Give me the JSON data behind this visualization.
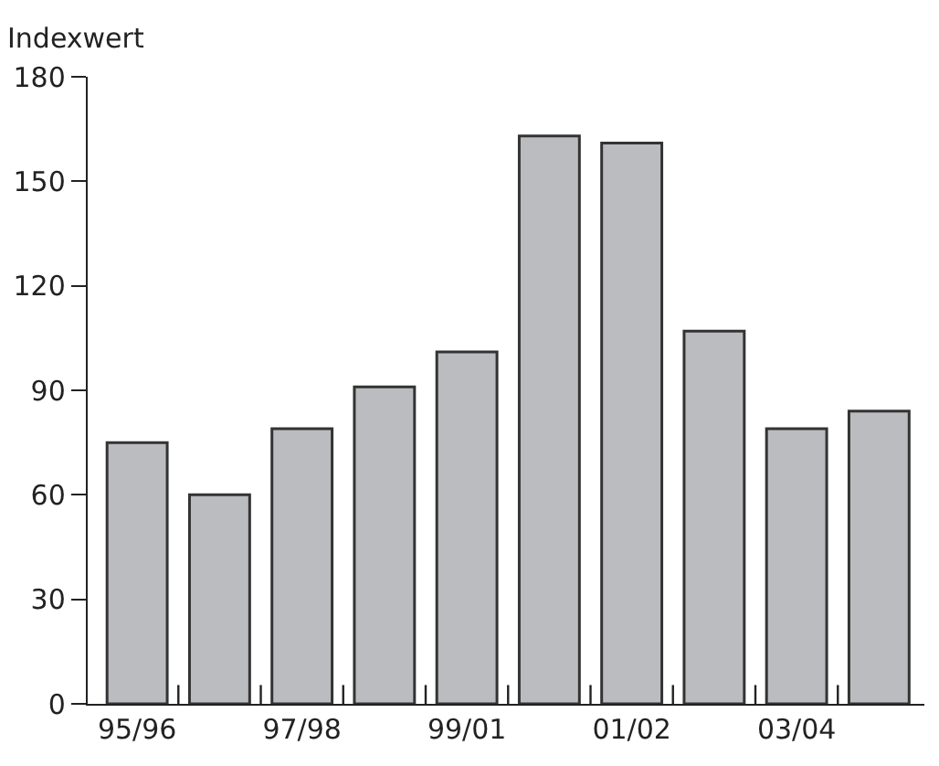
{
  "chart_data": {
    "type": "bar",
    "ylabel": "Indexwert",
    "categories": [
      "95/96",
      null,
      "97/98",
      null,
      "99/01",
      null,
      "01/02",
      null,
      "03/04",
      null
    ],
    "values": [
      75,
      60,
      79,
      91,
      101,
      163,
      161,
      107,
      79,
      84
    ],
    "color": "#bbbcc0",
    "ylim": [
      0,
      180
    ],
    "yticks": [
      0,
      30,
      60,
      90,
      120,
      150,
      180
    ],
    "grid": false,
    "legend": false
  }
}
